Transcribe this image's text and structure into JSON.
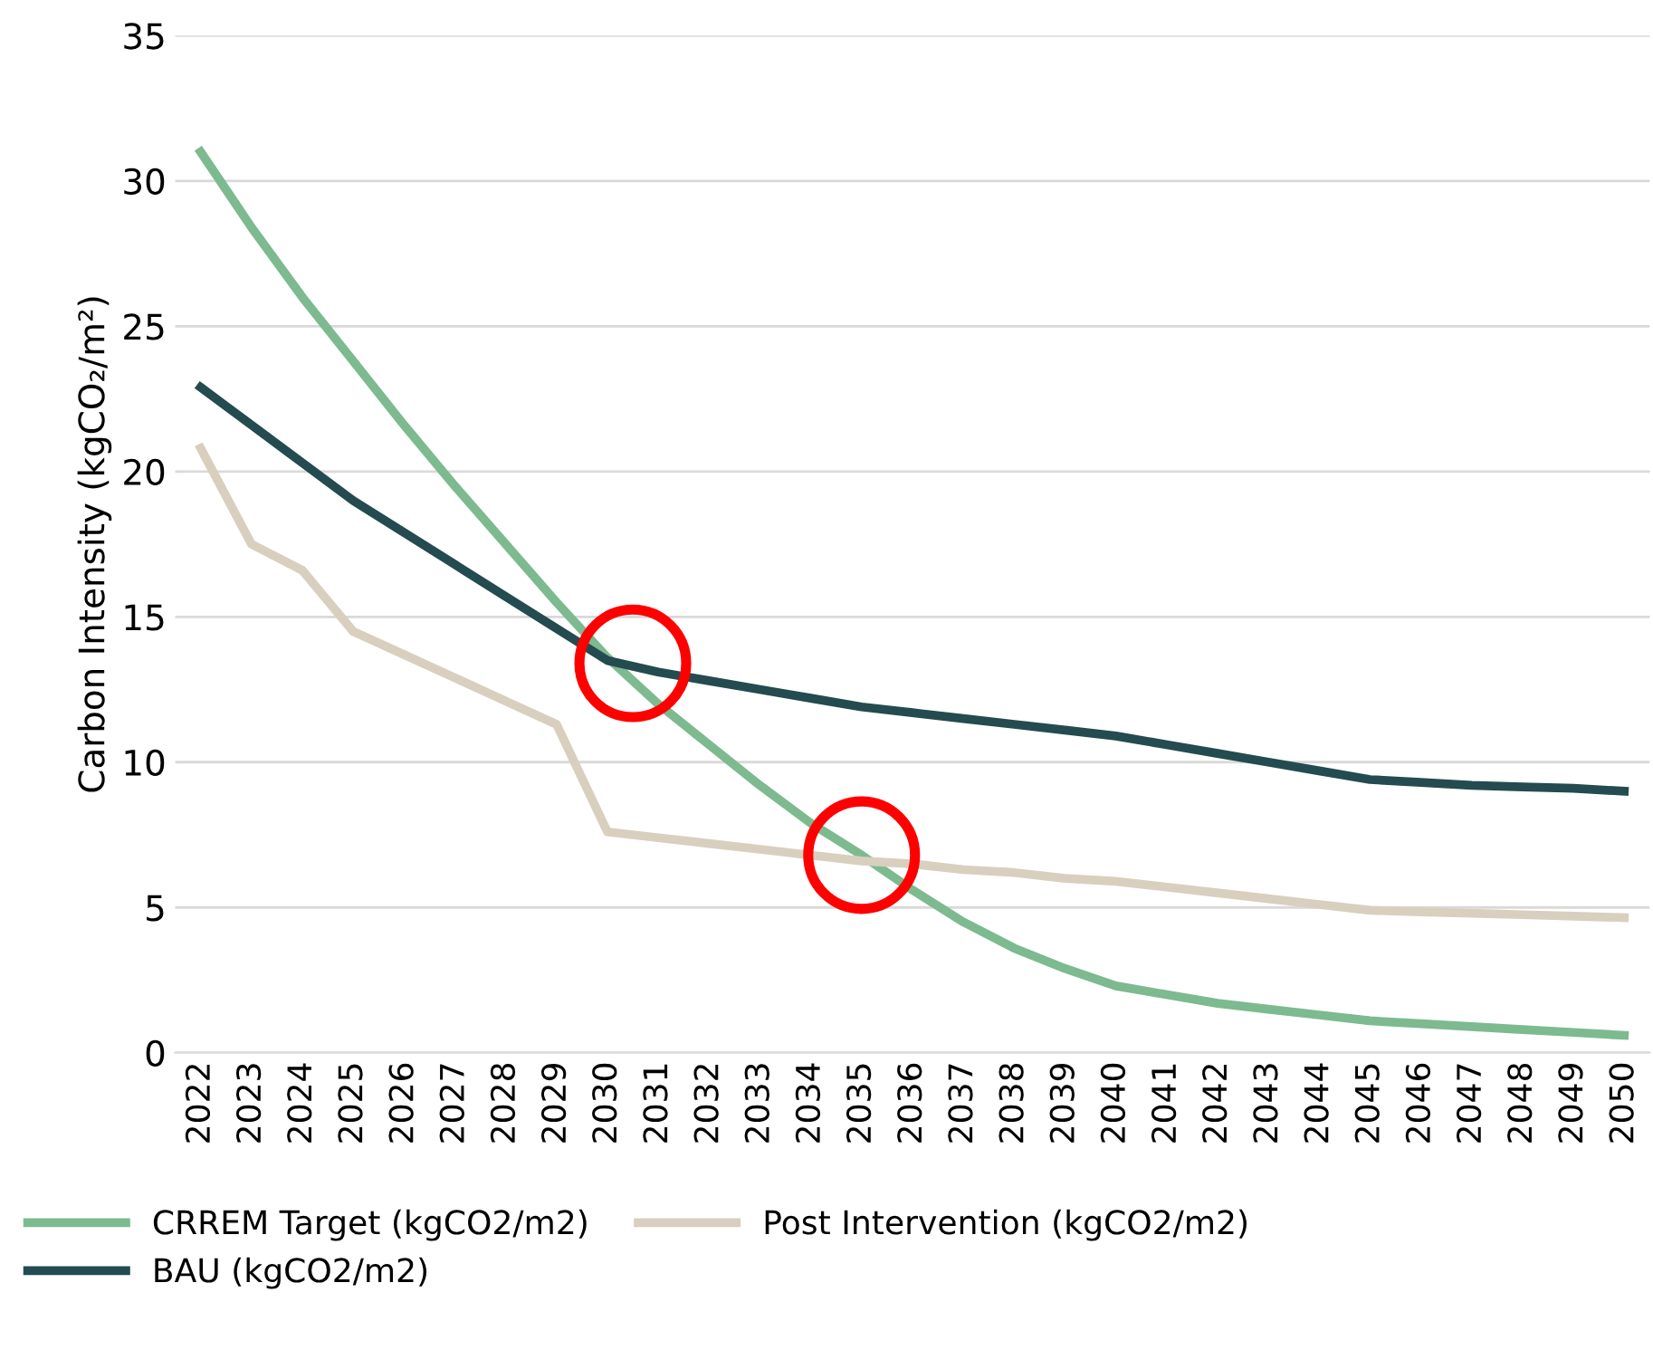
{
  "chart_data": {
    "type": "line",
    "ylabel": "Carbon Intensity (kgCO₂/m²)",
    "categories": [
      "2022",
      "2023",
      "2024",
      "2025",
      "2026",
      "2027",
      "2028",
      "2029",
      "2030",
      "2031",
      "2032",
      "2033",
      "2034",
      "2035",
      "2036",
      "2037",
      "2038",
      "2039",
      "2040",
      "2041",
      "2042",
      "2043",
      "2044",
      "2045",
      "2046",
      "2047",
      "2048",
      "2049",
      "2050"
    ],
    "series": [
      {
        "name": "CRREM Target (kgCO2/m2)",
        "color": "#7dba8f",
        "values": [
          31.0,
          28.4,
          26.0,
          23.8,
          21.6,
          19.5,
          17.5,
          15.5,
          13.6,
          12.0,
          10.6,
          9.2,
          7.9,
          6.8,
          5.6,
          4.5,
          3.6,
          2.9,
          2.3,
          2.0,
          1.7,
          1.5,
          1.3,
          1.1,
          1.0,
          0.9,
          0.8,
          0.7,
          0.6
        ]
      },
      {
        "name": "BAU (kgCO2/m2)",
        "color": "#244b4f",
        "values": [
          22.9,
          21.6,
          20.3,
          19.0,
          17.9,
          16.8,
          15.7,
          14.6,
          13.5,
          13.1,
          12.8,
          12.5,
          12.2,
          11.9,
          11.7,
          11.5,
          11.3,
          11.1,
          10.9,
          10.6,
          10.3,
          10.0,
          9.7,
          9.4,
          9.3,
          9.2,
          9.15,
          9.1,
          9.0
        ]
      },
      {
        "name": "Post Intervention (kgCO2/m2)",
        "color": "#d9cfbf",
        "values": [
          20.8,
          17.5,
          16.6,
          14.5,
          13.7,
          12.9,
          12.1,
          11.3,
          7.6,
          7.4,
          7.2,
          7.0,
          6.8,
          6.6,
          6.5,
          6.3,
          6.2,
          6.0,
          5.9,
          5.7,
          5.5,
          5.3,
          5.1,
          4.9,
          4.85,
          4.8,
          4.75,
          4.7,
          4.65
        ]
      }
    ],
    "ylim": [
      0,
      35
    ],
    "yticks": [
      0,
      5,
      10,
      15,
      20,
      25,
      30,
      35
    ],
    "grid": "y",
    "legend": "bottom",
    "marker": "none",
    "line_style": "solid"
  }
}
